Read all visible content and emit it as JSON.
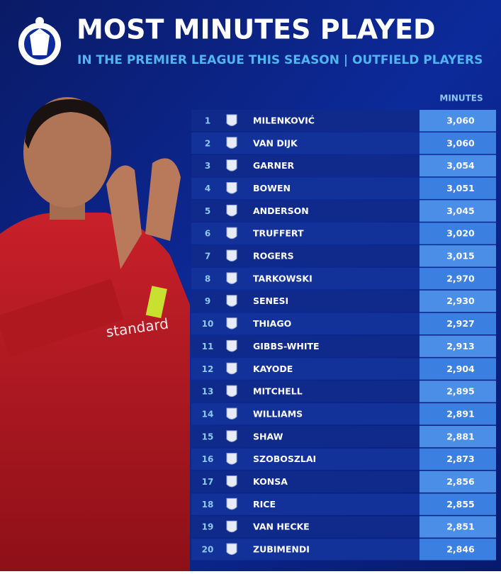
{
  "header": {
    "title": "MOST MINUTES PLAYED",
    "subtitle": "IN THE PREMIER LEAGUE THIS SEASON | OUTFIELD PLAYERS"
  },
  "table": {
    "column_header": "MINUTES",
    "rows": [
      [
        1,
        "MILENKOVIĆ",
        "3,060"
      ],
      [
        2,
        "VAN DIJK",
        "3,060"
      ],
      [
        3,
        "GARNER",
        "3,054"
      ],
      [
        4,
        "BOWEN",
        "3,051"
      ],
      [
        5,
        "ANDERSON",
        "3,045"
      ],
      [
        6,
        "TRUFFERT",
        "3,020"
      ],
      [
        7,
        "ROGERS",
        "3,015"
      ],
      [
        8,
        "TARKOWSKI",
        "2,970"
      ],
      [
        9,
        "SENESI",
        "2,930"
      ],
      [
        10,
        "THIAGO",
        "2,927"
      ],
      [
        11,
        "GIBBS-WHITE",
        "2,913"
      ],
      [
        12,
        "KAYODE",
        "2,904"
      ],
      [
        13,
        "MITCHELL",
        "2,895"
      ],
      [
        14,
        "WILLIAMS",
        "2,891"
      ],
      [
        15,
        "SHAW",
        "2,881"
      ],
      [
        16,
        "SZOBOSZLAI",
        "2,873"
      ],
      [
        17,
        "KONSA",
        "2,856"
      ],
      [
        18,
        "RICE",
        "2,855"
      ],
      [
        19,
        "VAN HECKE",
        "2,851"
      ],
      [
        20,
        "ZUBIMENDI",
        "2,846"
      ]
    ]
  }
}
